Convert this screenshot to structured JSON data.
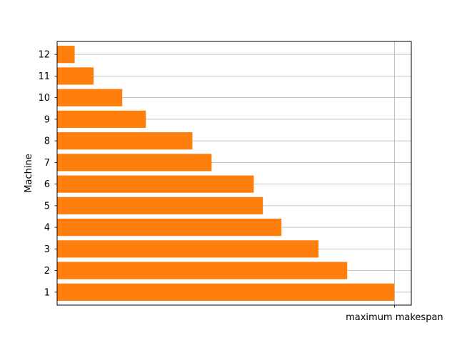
{
  "chart_data": {
    "type": "bar",
    "orientation": "horizontal",
    "categories": [
      "1",
      "2",
      "3",
      "4",
      "5",
      "6",
      "7",
      "8",
      "9",
      "10",
      "11",
      "12"
    ],
    "values": [
      100,
      86,
      77.5,
      66.5,
      61,
      58.3,
      45.8,
      40.1,
      26.3,
      19.3,
      10.8,
      5.2
    ],
    "xlim": [
      0,
      105
    ],
    "x_ticks": [
      {
        "value": 100,
        "label": "maximum makespan"
      }
    ],
    "title": "",
    "xlabel": "",
    "ylabel": "Machine",
    "grid": true,
    "bar_color": "#ff7f0e",
    "grid_color": "#b0b0b0"
  }
}
